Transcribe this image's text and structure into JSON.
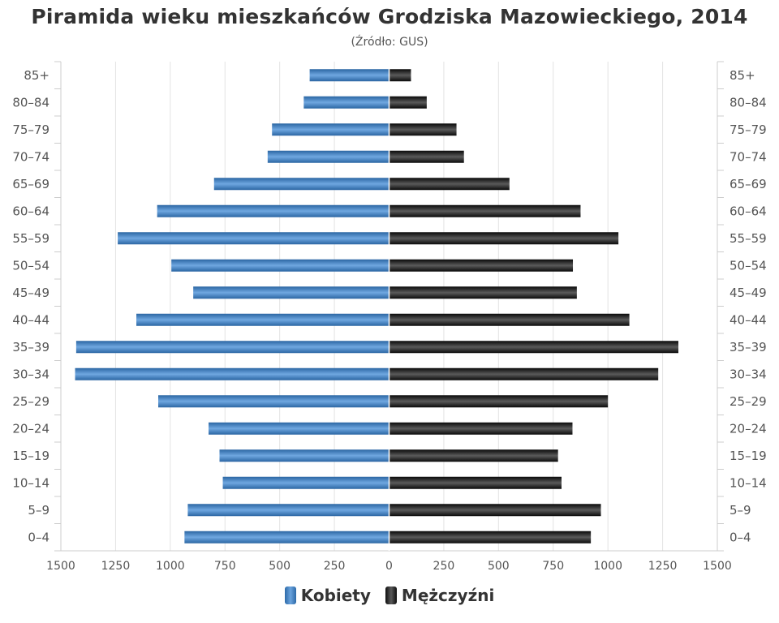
{
  "title": "Piramida wieku mieszkańców Grodziska Mazowieckiego, 2014",
  "subtitle": "(Źródło: GUS)",
  "legend": {
    "women_label": "Kobiety",
    "men_label": "Mężczyźni"
  },
  "colors": {
    "women": "#4a86c5",
    "men": "#1a1a1a",
    "grid": "#e0e0e0"
  },
  "chart_data": {
    "type": "bar",
    "orientation": "horizontal",
    "subtype": "population-pyramid",
    "title": "Piramida wieku mieszkańców Grodziska Mazowieckiego, 2014",
    "subtitle": "(Źródło: GUS)",
    "categories": [
      "85+",
      "80–84",
      "75–79",
      "70–74",
      "65–69",
      "60–64",
      "55–59",
      "50–54",
      "45–49",
      "40–44",
      "35–39",
      "30–34",
      "25–29",
      "20–24",
      "15–19",
      "10–14",
      "5–9",
      "0–4"
    ],
    "series": [
      {
        "name": "Kobiety",
        "side": "left",
        "values": [
          363,
          390,
          535,
          555,
          800,
          1060,
          1240,
          995,
          895,
          1155,
          1430,
          1435,
          1055,
          825,
          775,
          760,
          920,
          935
        ]
      },
      {
        "name": "Mężczyźni",
        "side": "right",
        "values": [
          100,
          172,
          308,
          342,
          550,
          875,
          1048,
          840,
          858,
          1098,
          1322,
          1230,
          1000,
          838,
          772,
          788,
          968,
          922
        ]
      }
    ],
    "xlim": [
      -1500,
      1500
    ],
    "xticks": [
      -1500,
      -1250,
      -1000,
      -750,
      -500,
      -250,
      0,
      250,
      500,
      750,
      1000,
      1250,
      1500
    ],
    "xtick_labels": [
      "1500",
      "1250",
      "1000",
      "750",
      "500",
      "250",
      "0",
      "250",
      "500",
      "750",
      "1000",
      "1250",
      "1500"
    ],
    "grid": true,
    "legend_position": "bottom"
  }
}
